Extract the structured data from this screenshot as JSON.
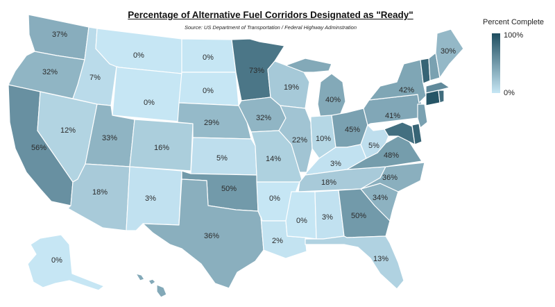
{
  "title": "Percentage of Alternative Fuel Corridors Designated as \"Ready\"",
  "source": "Source: US Department of Transportation / Federal Highway Adminstration",
  "legend": {
    "title": "Percent Complete",
    "max_label": "100%",
    "min_label": "0%",
    "color_low": "#c6e6f4",
    "color_high": "#1e4d5f"
  },
  "states": {
    "WA": {
      "pct": 37,
      "label": "37%"
    },
    "OR": {
      "pct": 32,
      "label": "32%"
    },
    "CA": {
      "pct": 56,
      "label": "56%"
    },
    "NV": {
      "pct": 12,
      "label": "12%"
    },
    "ID": {
      "pct": 7,
      "label": "7%"
    },
    "MT": {
      "pct": 0,
      "label": "0%"
    },
    "WY": {
      "pct": 0,
      "label": "0%"
    },
    "UT": {
      "pct": 33,
      "label": "33%"
    },
    "AZ": {
      "pct": 18,
      "label": "18%"
    },
    "CO": {
      "pct": 16,
      "label": "16%"
    },
    "NM": {
      "pct": 3,
      "label": "3%"
    },
    "ND": {
      "pct": 0,
      "label": "0%"
    },
    "SD": {
      "pct": 0,
      "label": "0%"
    },
    "NE": {
      "pct": 29,
      "label": "29%"
    },
    "KS": {
      "pct": 5,
      "label": "5%"
    },
    "OK": {
      "pct": 50,
      "label": "50%"
    },
    "TX": {
      "pct": 36,
      "label": "36%"
    },
    "MN": {
      "pct": 73,
      "label": "73%"
    },
    "IA": {
      "pct": 32,
      "label": "32%"
    },
    "MO": {
      "pct": 14,
      "label": "14%"
    },
    "AR": {
      "pct": 0,
      "label": "0%"
    },
    "LA": {
      "pct": 2,
      "label": "2%"
    },
    "WI": {
      "pct": 19,
      "label": "19%"
    },
    "IL": {
      "pct": 22,
      "label": "22%"
    },
    "MI": {
      "pct": 40,
      "label": "40%"
    },
    "IN": {
      "pct": 10,
      "label": "10%"
    },
    "OH": {
      "pct": 45,
      "label": "45%"
    },
    "KY": {
      "pct": 3,
      "label": "3%"
    },
    "TN": {
      "pct": 18,
      "label": "18%"
    },
    "MS": {
      "pct": 0,
      "label": "0%"
    },
    "AL": {
      "pct": 3,
      "label": "3%"
    },
    "GA": {
      "pct": 50,
      "label": "50%"
    },
    "FL": {
      "pct": 13,
      "label": "13%"
    },
    "SC": {
      "pct": 34,
      "label": "34%"
    },
    "NC": {
      "pct": 36,
      "label": "36%"
    },
    "VA": {
      "pct": 48,
      "label": "48%"
    },
    "WV": {
      "pct": 5,
      "label": "5%"
    },
    "PA": {
      "pct": 41,
      "label": "41%"
    },
    "NY": {
      "pct": 42,
      "label": "42%"
    },
    "ME": {
      "pct": 30,
      "label": "30%"
    },
    "AK": {
      "pct": 0,
      "label": "0%"
    },
    "HI": {
      "pct": 40
    },
    "VT": {
      "pct": 85
    },
    "NH": {
      "pct": 45
    },
    "MA": {
      "pct": 60
    },
    "CT": {
      "pct": 95
    },
    "RI": {
      "pct": 80
    },
    "NJ": {
      "pct": 45
    },
    "DE": {
      "pct": 85
    },
    "MD": {
      "pct": 78
    }
  }
}
